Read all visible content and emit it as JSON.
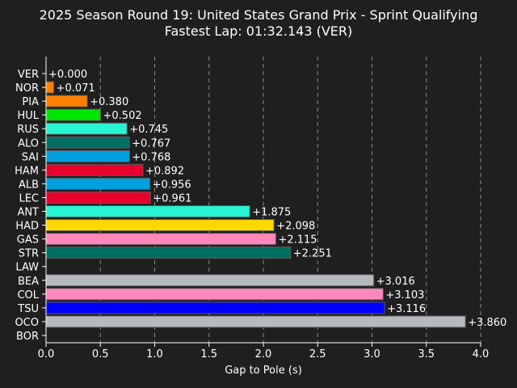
{
  "chart_data": {
    "type": "bar",
    "orientation": "horizontal",
    "title": "2025 Season Round 19: United States Grand Prix - Sprint Qualifying",
    "subtitle": "Fastest Lap: 01:32.143 (VER)",
    "xlabel": "Gap to Pole (s)",
    "ylabel": "",
    "xlim": [
      0,
      4.0
    ],
    "xticks": [
      0.0,
      0.5,
      1.0,
      1.5,
      2.0,
      2.5,
      3.0,
      3.5,
      4.0
    ],
    "xtick_labels": [
      "0.0",
      "0.5",
      "1.0",
      "1.5",
      "2.0",
      "2.5",
      "3.0",
      "3.5",
      "4.0"
    ],
    "grid": "vertical dashed",
    "categories": [
      "VER",
      "NOR",
      "PIA",
      "HUL",
      "RUS",
      "ALO",
      "SAI",
      "HAM",
      "ALB",
      "LEC",
      "ANT",
      "HAD",
      "GAS",
      "STR",
      "LAW",
      "BEA",
      "COL",
      "TSU",
      "OCO",
      "BOR"
    ],
    "values": [
      0.0,
      0.071,
      0.38,
      0.502,
      0.745,
      0.767,
      0.768,
      0.892,
      0.956,
      0.961,
      1.875,
      2.098,
      2.115,
      2.251,
      null,
      3.016,
      3.103,
      3.116,
      3.86,
      null
    ],
    "labels": [
      "+0.000",
      "+0.071",
      "+0.380",
      "+0.502",
      "+0.745",
      "+0.767",
      "+0.768",
      "+0.892",
      "+0.956",
      "+0.961",
      "+1.875",
      "+2.098",
      "+2.115",
      "+2.251",
      "",
      "+3.016",
      "+3.103",
      "+3.116",
      "+3.860",
      ""
    ],
    "colors": [
      "#1e41ff",
      "#ff8000",
      "#ff8000",
      "#00e701",
      "#27f4d2",
      "#006f62",
      "#00a0de",
      "#e8002d",
      "#00a0de",
      "#e8002d",
      "#27f4d2",
      "#ffd700",
      "#ff87bc",
      "#006f62",
      "#1e41ff",
      "#b6babd",
      "#ff87bc",
      "#0000ff",
      "#b6babd",
      "#00e701"
    ]
  }
}
